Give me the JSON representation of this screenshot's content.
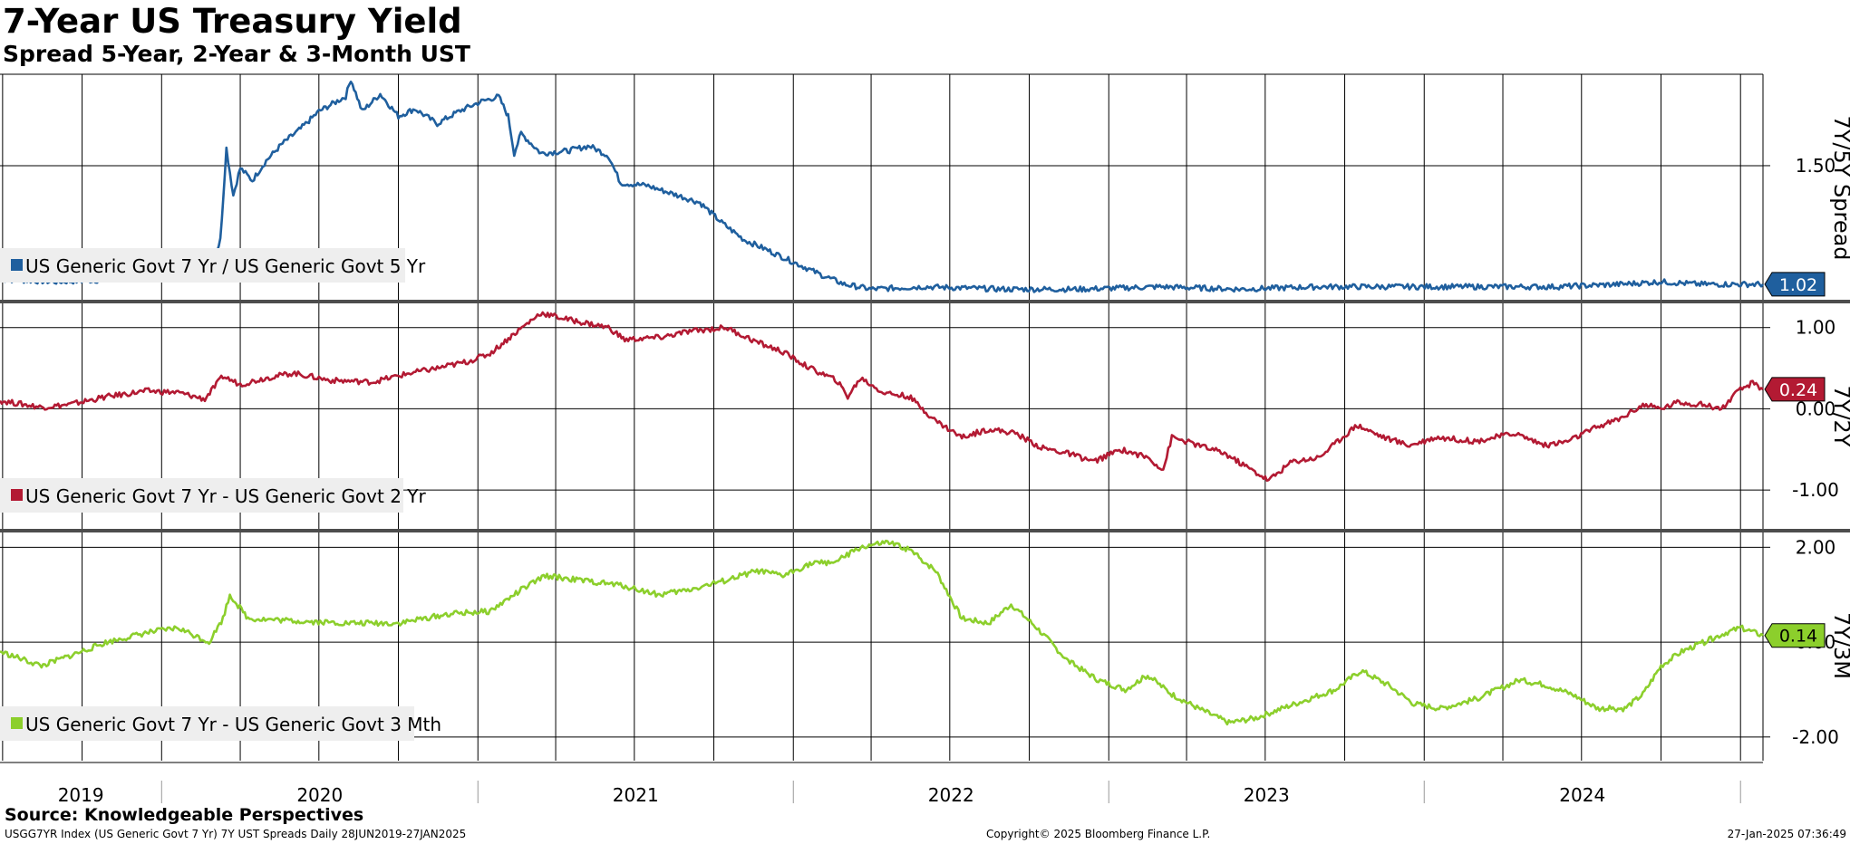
{
  "header": {
    "title": "7-Year US Treasury Yield",
    "subtitle": "Spread 5-Year, 2-Year & 3-Month UST"
  },
  "footer": {
    "source": "Source: Knowledgeable Perspectives",
    "ticker_info": "USGG7YR Index (US Generic Govt 7 Yr) 7Y UST Spreads  Daily 28JUN2019-27JAN2025",
    "copyright": "Copyright© 2025 Bloomberg Finance L.P.",
    "timestamp": "27-Jan-2025 07:36:49"
  },
  "chart_data": {
    "type": "line",
    "x_range": [
      "2019-06-28",
      "2025-01-27"
    ],
    "x_tick_labels": [
      "2019",
      "2020",
      "2021",
      "2022",
      "2023",
      "2024"
    ],
    "grid": true,
    "legend_placement": "bottom-left of each panel",
    "panels": [
      {
        "axis_title": "7Y/5Y Spread",
        "ylim": [
          0.95,
          1.87
        ],
        "y_ticks": [
          1.5
        ],
        "y_tick_labels": [
          "1.50"
        ],
        "series": [
          {
            "name": "US Generic Govt 7 Yr / US Generic Govt 5 Yr",
            "color": "#1f5f9e",
            "last_value_label": "1.02",
            "points": [
              [
                "2019-06-28",
                1.04
              ],
              [
                "2019-09-01",
                1.03
              ],
              [
                "2019-11-15",
                1.04
              ],
              [
                "2020-01-20",
                1.05
              ],
              [
                "2020-02-25",
                1.06
              ],
              [
                "2020-03-09",
                1.2
              ],
              [
                "2020-03-16",
                1.57
              ],
              [
                "2020-03-24",
                1.38
              ],
              [
                "2020-04-01",
                1.49
              ],
              [
                "2020-04-15",
                1.44
              ],
              [
                "2020-05-01",
                1.52
              ],
              [
                "2020-05-20",
                1.59
              ],
              [
                "2020-06-10",
                1.65
              ],
              [
                "2020-07-01",
                1.72
              ],
              [
                "2020-08-01",
                1.78
              ],
              [
                "2020-08-07",
                1.85
              ],
              [
                "2020-08-20",
                1.72
              ],
              [
                "2020-09-10",
                1.79
              ],
              [
                "2020-10-01",
                1.7
              ],
              [
                "2020-10-20",
                1.73
              ],
              [
                "2020-11-15",
                1.67
              ],
              [
                "2020-12-10",
                1.72
              ],
              [
                "2021-01-05",
                1.76
              ],
              [
                "2021-01-25",
                1.78
              ],
              [
                "2021-02-05",
                1.7
              ],
              [
                "2021-02-12",
                1.55
              ],
              [
                "2021-02-20",
                1.63
              ],
              [
                "2021-03-15",
                1.55
              ],
              [
                "2021-04-15",
                1.56
              ],
              [
                "2021-05-10",
                1.58
              ],
              [
                "2021-06-01",
                1.54
              ],
              [
                "2021-06-15",
                1.43
              ],
              [
                "2021-07-15",
                1.42
              ],
              [
                "2021-08-20",
                1.38
              ],
              [
                "2021-09-15",
                1.35
              ],
              [
                "2021-10-10",
                1.27
              ],
              [
                "2021-11-05",
                1.2
              ],
              [
                "2021-12-01",
                1.16
              ],
              [
                "2022-01-01",
                1.11
              ],
              [
                "2022-02-01",
                1.06
              ],
              [
                "2022-03-01",
                1.02
              ],
              [
                "2022-04-01",
                1.0
              ],
              [
                "2022-06-01",
                1.01
              ],
              [
                "2022-09-01",
                1.0
              ],
              [
                "2022-12-01",
                1.0
              ],
              [
                "2023-03-01",
                1.01
              ],
              [
                "2023-06-01",
                1.0
              ],
              [
                "2023-09-01",
                1.01
              ],
              [
                "2023-12-01",
                1.01
              ],
              [
                "2024-03-01",
                1.01
              ],
              [
                "2024-06-01",
                1.01
              ],
              [
                "2024-08-15",
                1.02
              ],
              [
                "2024-10-01",
                1.03
              ],
              [
                "2024-11-15",
                1.02
              ],
              [
                "2025-01-27",
                1.02
              ]
            ]
          }
        ]
      },
      {
        "axis_title": "7Y/2Y",
        "ylim": [
          -1.5,
          1.32
        ],
        "y_ticks": [
          1.0,
          0.0,
          -1.0
        ],
        "y_tick_labels": [
          "1.00",
          "0.00",
          "-1.00"
        ],
        "series": [
          {
            "name": "US Generic Govt 7 Yr - US Generic Govt 2 Yr",
            "color": "#b31a33",
            "last_value_label": "0.24",
            "points": [
              [
                "2019-06-28",
                0.1
              ],
              [
                "2019-08-15",
                0.02
              ],
              [
                "2019-09-15",
                0.05
              ],
              [
                "2019-10-30",
                0.15
              ],
              [
                "2019-12-15",
                0.22
              ],
              [
                "2020-01-20",
                0.2
              ],
              [
                "2020-02-20",
                0.12
              ],
              [
                "2020-03-12",
                0.4
              ],
              [
                "2020-04-01",
                0.3
              ],
              [
                "2020-05-01",
                0.38
              ],
              [
                "2020-06-01",
                0.44
              ],
              [
                "2020-07-15",
                0.35
              ],
              [
                "2020-09-01",
                0.33
              ],
              [
                "2020-10-15",
                0.44
              ],
              [
                "2020-11-15",
                0.5
              ],
              [
                "2020-12-20",
                0.58
              ],
              [
                "2021-01-15",
                0.68
              ],
              [
                "2021-02-15",
                0.95
              ],
              [
                "2021-03-15",
                1.18
              ],
              [
                "2021-04-15",
                1.1
              ],
              [
                "2021-06-01",
                1.0
              ],
              [
                "2021-06-20",
                0.85
              ],
              [
                "2021-08-01",
                0.88
              ],
              [
                "2021-09-01",
                0.95
              ],
              [
                "2021-10-15",
                1.0
              ],
              [
                "2021-11-20",
                0.82
              ],
              [
                "2021-12-20",
                0.7
              ],
              [
                "2022-01-20",
                0.5
              ],
              [
                "2022-02-20",
                0.35
              ],
              [
                "2022-03-05",
                0.15
              ],
              [
                "2022-03-20",
                0.38
              ],
              [
                "2022-04-15",
                0.2
              ],
              [
                "2022-05-15",
                0.15
              ],
              [
                "2022-06-15",
                -0.15
              ],
              [
                "2022-07-15",
                -0.35
              ],
              [
                "2022-08-15",
                -0.25
              ],
              [
                "2022-09-15",
                -0.3
              ],
              [
                "2022-10-15",
                -0.48
              ],
              [
                "2022-11-15",
                -0.55
              ],
              [
                "2022-12-15",
                -0.65
              ],
              [
                "2023-01-15",
                -0.5
              ],
              [
                "2023-02-15",
                -0.6
              ],
              [
                "2023-03-05",
                -0.75
              ],
              [
                "2023-03-15",
                -0.35
              ],
              [
                "2023-04-15",
                -0.45
              ],
              [
                "2023-05-15",
                -0.55
              ],
              [
                "2023-06-15",
                -0.75
              ],
              [
                "2023-07-05",
                -0.88
              ],
              [
                "2023-08-01",
                -0.65
              ],
              [
                "2023-09-01",
                -0.6
              ],
              [
                "2023-10-15",
                -0.2
              ],
              [
                "2023-11-15",
                -0.35
              ],
              [
                "2023-12-15",
                -0.45
              ],
              [
                "2024-01-15",
                -0.35
              ],
              [
                "2024-03-01",
                -0.4
              ],
              [
                "2024-04-15",
                -0.3
              ],
              [
                "2024-05-20",
                -0.45
              ],
              [
                "2024-06-15",
                -0.4
              ],
              [
                "2024-07-20",
                -0.22
              ],
              [
                "2024-08-15",
                -0.12
              ],
              [
                "2024-09-10",
                0.05
              ],
              [
                "2024-10-01",
                0.0
              ],
              [
                "2024-10-20",
                0.08
              ],
              [
                "2024-11-20",
                0.05
              ],
              [
                "2024-12-10",
                0.0
              ],
              [
                "2024-12-30",
                0.22
              ],
              [
                "2025-01-15",
                0.32
              ],
              [
                "2025-01-27",
                0.24
              ]
            ]
          }
        ]
      },
      {
        "axis_title": "7Y/3M",
        "ylim": [
          -2.5,
          2.35
        ],
        "y_ticks": [
          2.0,
          0.0,
          -2.0
        ],
        "y_tick_labels": [
          "2.00",
          "0.00",
          "-2.00"
        ],
        "series": [
          {
            "name": "US Generic Govt 7 Yr - US Generic Govt 3 Mth",
            "color": "#8ccf2c",
            "last_value_label": "0.14",
            "points": [
              [
                "2019-06-28",
                -0.2
              ],
              [
                "2019-08-15",
                -0.5
              ],
              [
                "2019-09-15",
                -0.3
              ],
              [
                "2019-10-30",
                0.0
              ],
              [
                "2019-12-15",
                0.2
              ],
              [
                "2020-01-20",
                0.3
              ],
              [
                "2020-02-25",
                0.0
              ],
              [
                "2020-03-12",
                0.5
              ],
              [
                "2020-03-20",
                1.0
              ],
              [
                "2020-04-10",
                0.5
              ],
              [
                "2020-06-01",
                0.45
              ],
              [
                "2020-08-01",
                0.4
              ],
              [
                "2020-10-01",
                0.4
              ],
              [
                "2020-12-01",
                0.6
              ],
              [
                "2021-01-15",
                0.65
              ],
              [
                "2021-02-20",
                1.1
              ],
              [
                "2021-03-20",
                1.4
              ],
              [
                "2021-05-01",
                1.3
              ],
              [
                "2021-06-15",
                1.2
              ],
              [
                "2021-07-30",
                1.0
              ],
              [
                "2021-09-01",
                1.1
              ],
              [
                "2021-10-15",
                1.3
              ],
              [
                "2021-11-20",
                1.5
              ],
              [
                "2021-12-20",
                1.4
              ],
              [
                "2022-01-20",
                1.65
              ],
              [
                "2022-02-20",
                1.7
              ],
              [
                "2022-03-20",
                2.0
              ],
              [
                "2022-04-20",
                2.1
              ],
              [
                "2022-05-15",
                1.95
              ],
              [
                "2022-06-15",
                1.5
              ],
              [
                "2022-07-15",
                0.5
              ],
              [
                "2022-08-15",
                0.4
              ],
              [
                "2022-09-10",
                0.8
              ],
              [
                "2022-10-10",
                0.3
              ],
              [
                "2022-11-15",
                -0.4
              ],
              [
                "2022-12-20",
                -0.8
              ],
              [
                "2023-01-20",
                -1.0
              ],
              [
                "2023-02-15",
                -0.7
              ],
              [
                "2023-03-15",
                -1.1
              ],
              [
                "2023-04-15",
                -1.4
              ],
              [
                "2023-05-20",
                -1.7
              ],
              [
                "2023-06-20",
                -1.6
              ],
              [
                "2023-07-20",
                -1.4
              ],
              [
                "2023-08-20",
                -1.2
              ],
              [
                "2023-09-20",
                -1.0
              ],
              [
                "2023-10-20",
                -0.6
              ],
              [
                "2023-11-20",
                -0.9
              ],
              [
                "2023-12-20",
                -1.3
              ],
              [
                "2024-01-20",
                -1.4
              ],
              [
                "2024-03-01",
                -1.2
              ],
              [
                "2024-04-20",
                -0.8
              ],
              [
                "2024-05-20",
                -0.9
              ],
              [
                "2024-06-20",
                -1.1
              ],
              [
                "2024-07-20",
                -1.4
              ],
              [
                "2024-08-20",
                -1.4
              ],
              [
                "2024-09-10",
                -1.1
              ],
              [
                "2024-10-01",
                -0.5
              ],
              [
                "2024-10-25",
                -0.2
              ],
              [
                "2024-11-20",
                0.0
              ],
              [
                "2024-12-15",
                0.2
              ],
              [
                "2025-01-01",
                0.3
              ],
              [
                "2025-01-27",
                0.14
              ]
            ]
          }
        ]
      }
    ]
  }
}
